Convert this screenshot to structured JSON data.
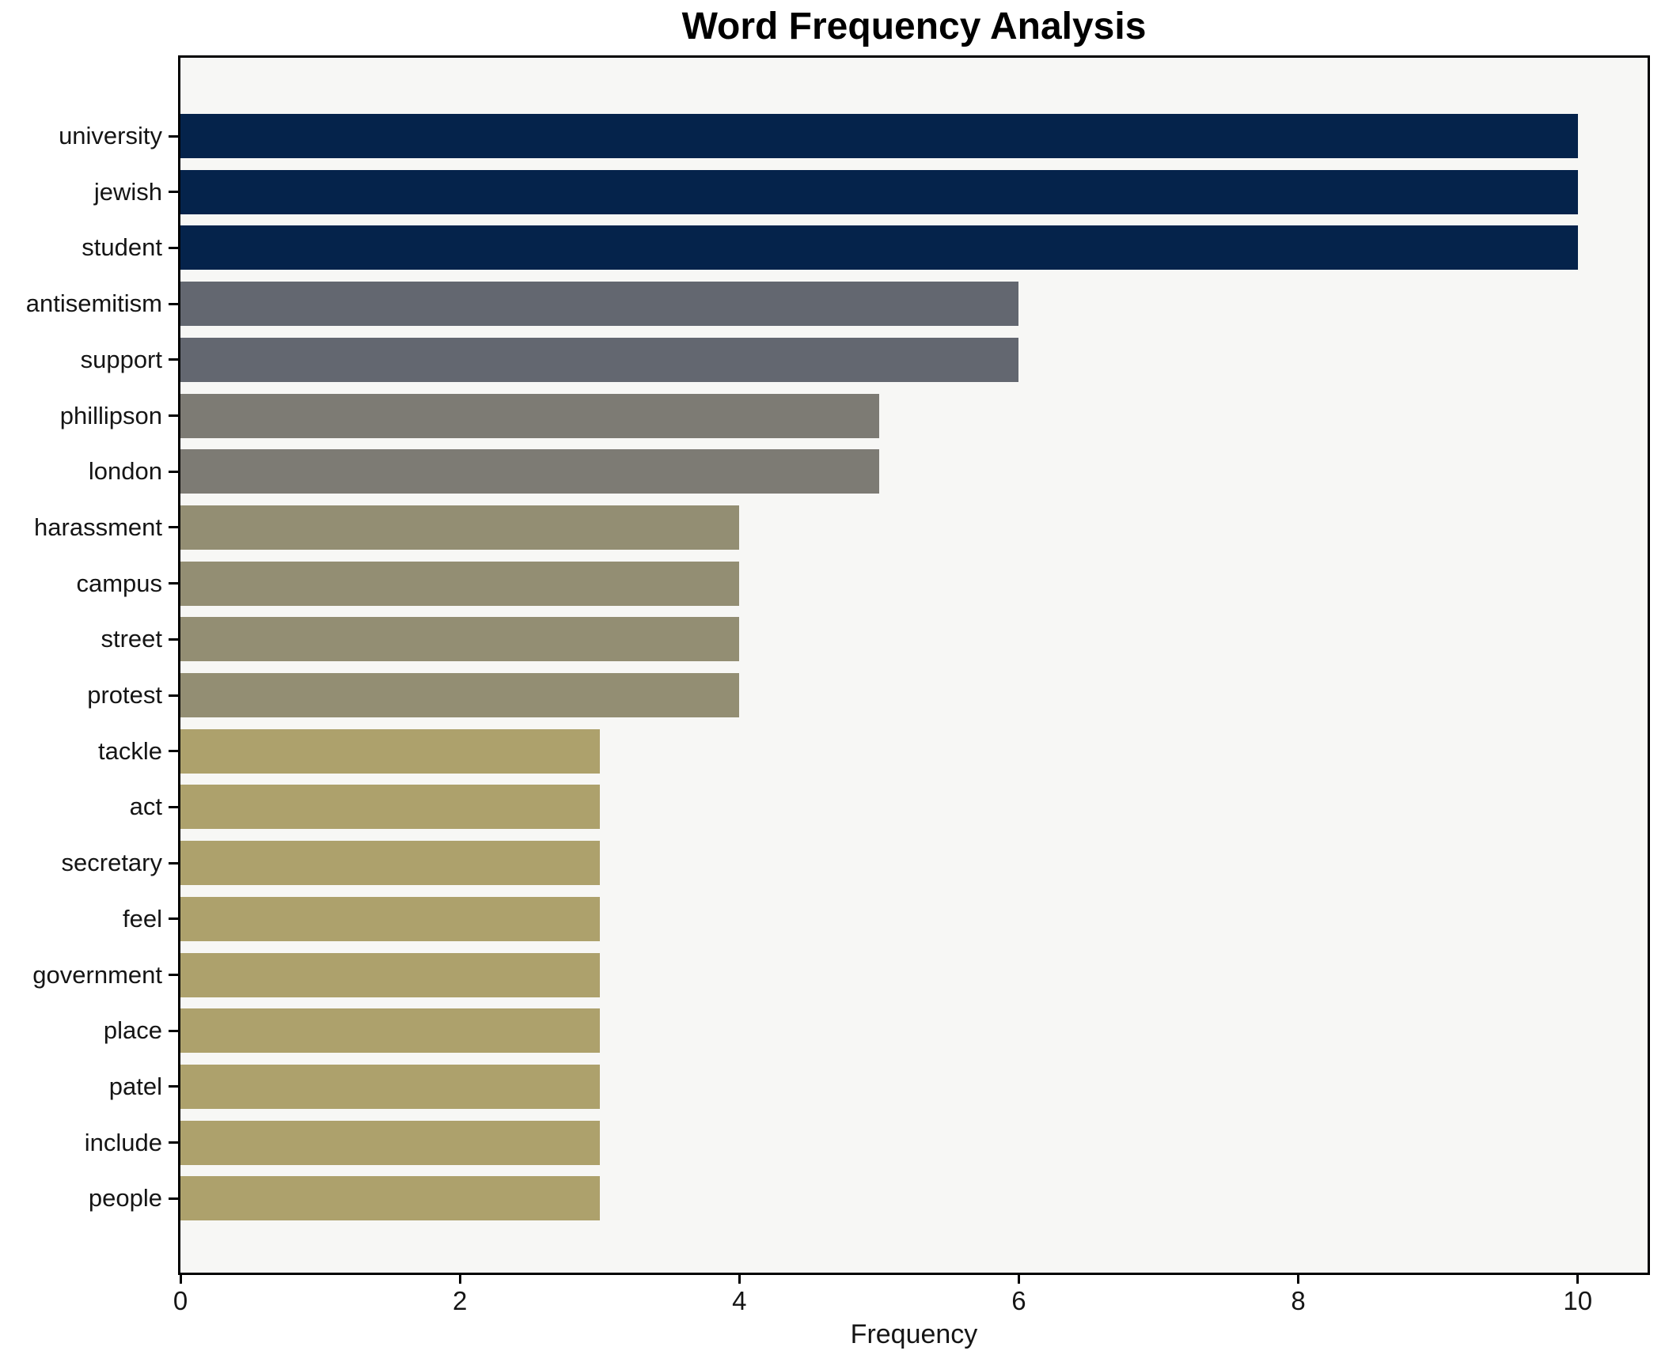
{
  "figure": {
    "title": "Word Frequency Analysis",
    "xlabel": "Frequency"
  },
  "chart_data": {
    "type": "bar",
    "orientation": "horizontal",
    "title": "Word Frequency Analysis",
    "xlabel": "Frequency",
    "ylabel": "",
    "categories": [
      "university",
      "jewish",
      "student",
      "antisemitism",
      "support",
      "phillipson",
      "london",
      "harassment",
      "campus",
      "street",
      "protest",
      "tackle",
      "act",
      "secretary",
      "feel",
      "government",
      "place",
      "patel",
      "include",
      "people"
    ],
    "values": [
      10,
      10,
      10,
      6,
      6,
      5,
      5,
      4,
      4,
      4,
      4,
      3,
      3,
      3,
      3,
      3,
      3,
      3,
      3,
      3
    ],
    "bar_colors": [
      "#05234b",
      "#05234b",
      "#05234b",
      "#636770",
      "#636770",
      "#7d7b74",
      "#7d7b74",
      "#938e73",
      "#938e73",
      "#938e73",
      "#938e73",
      "#ada16c",
      "#ada16c",
      "#ada16c",
      "#ada16c",
      "#ada16c",
      "#ada16c",
      "#ada16c",
      "#ada16c",
      "#ada16c"
    ],
    "color_by_value": {
      "10": "#05234b",
      "6": "#636770",
      "5": "#7d7b74",
      "4": "#938e73",
      "3": "#ada16c"
    },
    "xticks": [
      0,
      2,
      4,
      6,
      8,
      10
    ],
    "xlim": [
      0,
      10.5
    ],
    "grid": false,
    "legend": null,
    "plot_background": "#f7f7f5",
    "figure_background": "#ffffff",
    "spine_color": "#000000",
    "tick_color": "#000000"
  }
}
